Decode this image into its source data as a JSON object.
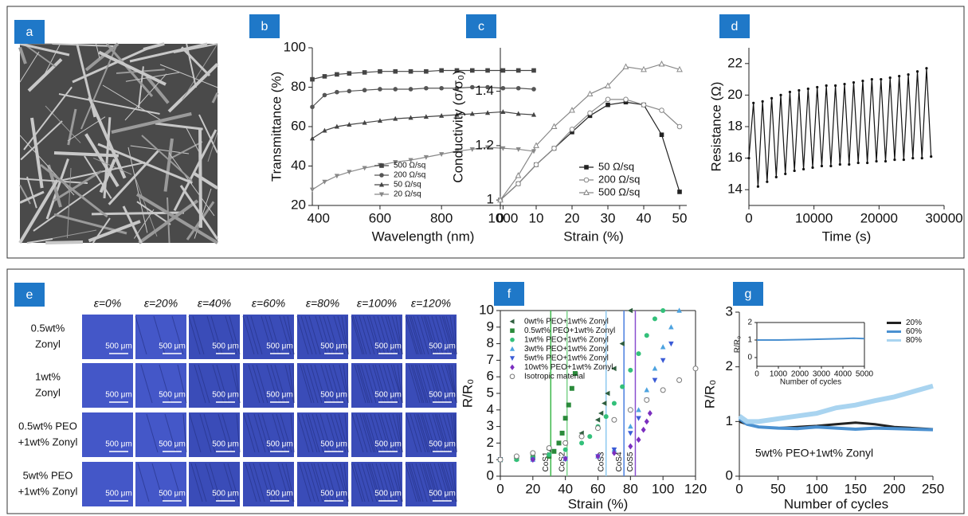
{
  "figure": {
    "panel_labels": [
      "a",
      "b",
      "c",
      "d",
      "e",
      "f",
      "g"
    ],
    "micrograph_grid": {
      "columns": [
        "ε=0%",
        "ε=20%",
        "ε=40%",
        "ε=60%",
        "ε=80%",
        "ε=100%",
        "ε=120%"
      ],
      "rows": [
        [
          "0.5wt%",
          "Zonyl"
        ],
        [
          "1wt%",
          "Zonyl"
        ],
        [
          "0.5wt% PEO",
          "+1wt% Zonyl"
        ],
        [
          "5wt% PEO",
          "+1wt% Zonyl"
        ]
      ],
      "scale_bar": "500 μm"
    }
  },
  "chart_data": [
    {
      "type": "line",
      "xlabel": "Wavelength (nm)",
      "ylabel": "Transmittance (%)",
      "xlim": [
        380,
        1100
      ],
      "ylim": [
        20,
        100
      ],
      "xticks": [
        400,
        600,
        800,
        1000
      ],
      "yticks": [
        20,
        40,
        60,
        80,
        100
      ],
      "legend": "lower right",
      "x": [
        380,
        420,
        460,
        500,
        550,
        600,
        650,
        700,
        750,
        800,
        850,
        900,
        950,
        1000,
        1050,
        1100
      ],
      "series": [
        {
          "name": "500 Ω/sq",
          "color": "#444444",
          "marker": "square",
          "values": [
            84,
            85.5,
            86.5,
            87,
            87.5,
            88,
            88,
            88,
            88,
            88.5,
            88.5,
            88.5,
            88.5,
            88.5,
            88.5,
            88.5
          ]
        },
        {
          "name": "200 Ω/sq",
          "color": "#555555",
          "marker": "circle",
          "values": [
            70,
            76,
            77.5,
            78,
            78.5,
            79,
            79,
            79,
            79.5,
            79.5,
            79.5,
            80,
            80,
            79.5,
            79.5,
            79
          ]
        },
        {
          "name": "50 Ω/sq",
          "color": "#444444",
          "marker": "triangle-up",
          "values": [
            54,
            58,
            60,
            61,
            62,
            63,
            64,
            64.5,
            65,
            65.5,
            66,
            66.5,
            67,
            67.5,
            66.5,
            66
          ]
        },
        {
          "name": "20 Ω/sq",
          "color": "#888888",
          "marker": "triangle-down",
          "values": [
            28,
            32,
            35,
            37,
            39,
            40.5,
            42,
            43,
            44.5,
            46,
            47.5,
            48.5,
            49.5,
            49,
            48.5,
            47.5
          ]
        }
      ]
    },
    {
      "type": "line",
      "xlabel": "Strain (%)",
      "ylabel": "Conductivity (σ/σ₀)",
      "xlim": [
        0,
        52
      ],
      "ylim": [
        0.98,
        1.56
      ],
      "xticks": [
        0,
        10,
        20,
        30,
        40,
        50
      ],
      "yticks": [
        1.0,
        1.2,
        1.4
      ],
      "legend": "lower right",
      "x": [
        0,
        5,
        10,
        15,
        20,
        25,
        30,
        35,
        40,
        45,
        50
      ],
      "series": [
        {
          "name": "50 Ω/sq",
          "color": "#222222",
          "marker": "square",
          "values": [
            1.0,
            1.06,
            1.13,
            1.19,
            1.25,
            1.31,
            1.35,
            1.36,
            1.35,
            1.24,
            1.03
          ]
        },
        {
          "name": "200 Ω/sq",
          "color": "#888888",
          "marker": "open-circle",
          "values": [
            1.0,
            1.06,
            1.13,
            1.19,
            1.26,
            1.32,
            1.37,
            1.37,
            1.35,
            1.33,
            1.27
          ]
        },
        {
          "name": "500 Ω/sq",
          "color": "#888888",
          "marker": "open-triangle",
          "values": [
            1.0,
            1.09,
            1.2,
            1.27,
            1.33,
            1.39,
            1.42,
            1.49,
            1.48,
            1.5,
            1.48
          ]
        }
      ]
    },
    {
      "type": "line",
      "xlabel": "Time (s)",
      "ylabel": "Resistance (Ω)",
      "xlim": [
        0,
        30000
      ],
      "ylim": [
        13,
        23
      ],
      "xticks": [
        0,
        10000,
        20000,
        30000
      ],
      "yticks": [
        14,
        16,
        18,
        20,
        22
      ],
      "x": [
        0,
        700,
        1400,
        2100,
        2800,
        3500,
        4200,
        4900,
        5600,
        6300,
        7000,
        7700,
        8400,
        9100,
        9800,
        10500,
        11200,
        11900,
        12600,
        13300,
        14000,
        14700,
        15400,
        16100,
        16800,
        17500,
        18200,
        18900,
        19600,
        20300,
        21000,
        21700,
        22400,
        23100,
        23800,
        24500,
        25200,
        25900,
        26600,
        27300,
        28000
      ],
      "series": [
        {
          "color": "#111111",
          "marker": "dot",
          "values": [
            16,
            19.5,
            14.2,
            19.6,
            14.5,
            19.8,
            14.8,
            20.0,
            15.0,
            20.2,
            15.2,
            20.3,
            15.3,
            20.4,
            15.4,
            20.5,
            15.5,
            20.6,
            15.5,
            20.6,
            15.6,
            20.7,
            15.6,
            20.8,
            15.7,
            20.9,
            15.7,
            21.0,
            15.8,
            21.0,
            15.8,
            21.1,
            15.9,
            21.2,
            15.9,
            21.3,
            16.0,
            21.5,
            16.0,
            21.7,
            16.1
          ]
        }
      ]
    },
    {
      "type": "scatter",
      "xlabel": "Strain (%)",
      "ylabel": "R/R₀",
      "box": true,
      "xlim": [
        0,
        120
      ],
      "ylim": [
        0,
        10
      ],
      "xticks": [
        0,
        20,
        40,
        60,
        80,
        100,
        120
      ],
      "yticks": [
        0,
        1,
        2,
        3,
        4,
        5,
        6,
        7,
        8,
        9,
        10
      ],
      "legend": "upper left",
      "vlines": [
        {
          "x": 31,
          "label": "CoS1",
          "color": "#3cb84a"
        },
        {
          "x": 41,
          "label": "CoS2",
          "color": "#7cd38a"
        },
        {
          "x": 65,
          "label": "CoS3",
          "color": "#8ec9ef"
        },
        {
          "x": 76,
          "label": "CoS4",
          "color": "#4a7fe0"
        },
        {
          "x": 83,
          "label": "CoS5",
          "color": "#8a4fd0"
        }
      ],
      "series": [
        {
          "name": "0wt% PEO+1wt% Zonyl",
          "color": "#2e5e3e",
          "marker": "triangle-left",
          "x": [
            0,
            10,
            20,
            30,
            40,
            50,
            60,
            62,
            64,
            66,
            70,
            75,
            80
          ],
          "values": [
            1,
            1.1,
            1.3,
            1.6,
            2,
            2.6,
            3.4,
            3.8,
            4.4,
            5.0,
            6.5,
            8,
            10
          ]
        },
        {
          "name": "0.5wt% PEO+1wt% Zonyl",
          "color": "#2a8a3a",
          "marker": "square",
          "x": [
            0,
            10,
            20,
            30,
            33,
            36,
            38,
            40,
            42,
            44,
            46
          ],
          "values": [
            1,
            1.05,
            1.1,
            1.2,
            1.5,
            2,
            2.6,
            3.5,
            4.3,
            5.3,
            6.2
          ]
        },
        {
          "name": "1wt% PEO+1wt% Zonyl",
          "color": "#33c07a",
          "marker": "circle",
          "x": [
            0,
            10,
            20,
            30,
            40,
            50,
            55,
            60,
            65,
            70,
            75,
            80,
            85,
            90,
            95,
            100
          ],
          "values": [
            1,
            1,
            1.1,
            1.3,
            1.6,
            2.0,
            2.4,
            3,
            3.6,
            4.4,
            5.4,
            6.4,
            7.4,
            8.5,
            9.5,
            10
          ]
        },
        {
          "name": "3wt% PEO+1wt% Zonyl",
          "color": "#4da3e0",
          "marker": "triangle-up",
          "x": [
            0,
            20,
            40,
            60,
            70,
            80,
            85,
            90,
            95,
            100,
            105,
            110
          ],
          "values": [
            1,
            1,
            1.05,
            1.2,
            1.6,
            3,
            4,
            5.2,
            6.5,
            7.8,
            9,
            10
          ]
        },
        {
          "name": "5wt% PEO+1wt% Zonyl",
          "color": "#3b5bd6",
          "marker": "triangle-down",
          "x": [
            0,
            20,
            40,
            60,
            70,
            80,
            85,
            90,
            95,
            100,
            105
          ],
          "values": [
            1,
            1,
            1.05,
            1.2,
            1.6,
            2.6,
            3.5,
            4.6,
            5.8,
            7,
            8
          ]
        },
        {
          "name": "10wt% PEO+1wt% Zonyl",
          "color": "#7b2fbf",
          "marker": "diamond",
          "x": [
            0,
            20,
            40,
            60,
            70,
            80,
            85,
            88,
            90,
            92
          ],
          "values": [
            1,
            1,
            1.05,
            1.2,
            1.4,
            1.8,
            2.2,
            2.8,
            3.3,
            3.8
          ]
        },
        {
          "name": "Isotropic material",
          "color": "#777777",
          "marker": "open-circle",
          "x": [
            0,
            10,
            20,
            30,
            40,
            50,
            60,
            70,
            80,
            90,
            100,
            110,
            120
          ],
          "values": [
            1,
            1.2,
            1.4,
            1.7,
            2.0,
            2.4,
            2.9,
            3.4,
            4.0,
            4.6,
            5.2,
            5.8,
            6.5
          ]
        }
      ]
    },
    {
      "type": "line",
      "xlabel": "Number of cycles",
      "ylabel": "R/R₀",
      "annotation": "5wt% PEO+1wt% Zonyl",
      "xlim": [
        0,
        250
      ],
      "ylim": [
        0,
        3
      ],
      "xticks": [
        0,
        50,
        100,
        150,
        200,
        250
      ],
      "yticks": [
        0,
        1,
        2,
        3
      ],
      "legend": "upper right",
      "x": [
        0,
        10,
        25,
        50,
        75,
        100,
        125,
        150,
        175,
        200,
        225,
        250
      ],
      "series": [
        {
          "name": "20%",
          "color": "#222222",
          "values": [
            1.0,
            0.95,
            0.9,
            0.88,
            0.9,
            0.92,
            0.95,
            0.98,
            0.95,
            0.9,
            0.88,
            0.86
          ]
        },
        {
          "name": "60%",
          "color": "#4a90d0",
          "values": [
            1.05,
            0.95,
            0.9,
            0.88,
            0.87,
            0.9,
            0.88,
            0.86,
            0.88,
            0.87,
            0.86,
            0.85
          ]
        },
        {
          "name": "80%",
          "color": "#a9d4f0",
          "values": [
            1.1,
            1.0,
            1.0,
            1.05,
            1.1,
            1.15,
            1.25,
            1.3,
            1.38,
            1.45,
            1.55,
            1.65
          ]
        }
      ]
    },
    {
      "type": "line",
      "xlabel": "Number of cycles",
      "ylabel": "R/R₀",
      "box": true,
      "xlim": [
        0,
        5000
      ],
      "ylim": [
        -0.5,
        2
      ],
      "xticks": [
        0,
        1000,
        2000,
        3000,
        4000,
        5000
      ],
      "yticks": [
        0,
        1,
        2
      ],
      "x": [
        0,
        1000,
        2000,
        3000,
        4000,
        4500,
        5000
      ],
      "series": [
        {
          "color": "#4a90d0",
          "values": [
            1,
            1,
            1.02,
            1.05,
            1.08,
            1.1,
            1.08
          ]
        }
      ]
    }
  ]
}
